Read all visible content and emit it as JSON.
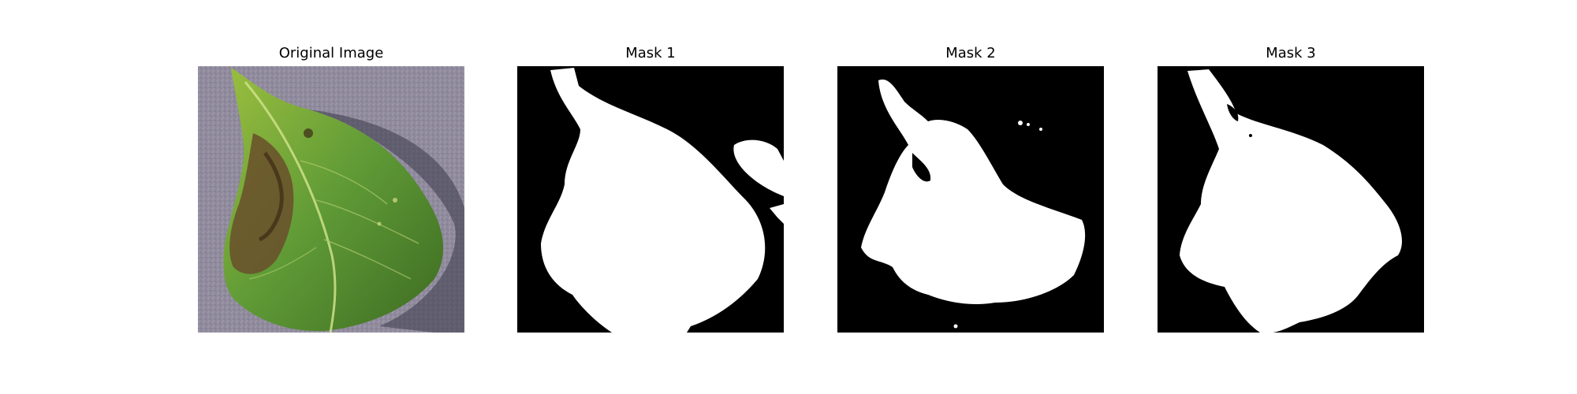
{
  "figure": {
    "panels": [
      {
        "title": "Original Image",
        "kind": "photo",
        "subject": "leaf"
      },
      {
        "title": "Mask 1",
        "kind": "mask"
      },
      {
        "title": "Mask 2",
        "kind": "mask"
      },
      {
        "title": "Mask 3",
        "kind": "mask"
      }
    ]
  },
  "colors": {
    "background": "#ffffff",
    "mask_background": "#000000",
    "mask_foreground": "#ffffff",
    "paper_background": "#8f8a9c",
    "leaf_green": "#5f9a36",
    "leaf_dark": "#3d6b22",
    "leaf_brown": "#6a4f2b"
  }
}
